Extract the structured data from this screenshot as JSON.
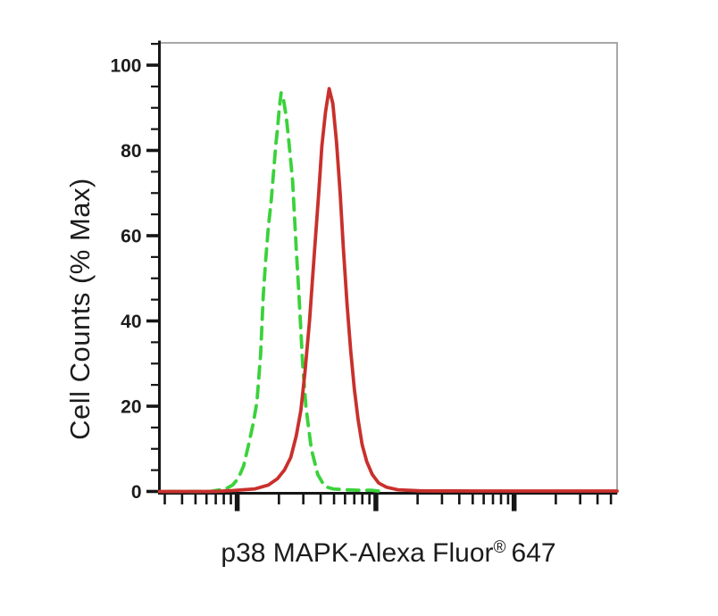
{
  "figure": {
    "xlabel_main": "p38 MAPK-Alexa Fluor",
    "xlabel_sup": "®",
    "xlabel_suffix": "647",
    "ylabel": "Cell Counts (% Max)"
  },
  "colors": {
    "green_series": "#3bd23b",
    "red_series": "#c9302c",
    "axis": "#161616",
    "frame": "#a8a8a8",
    "text": "#1c1c1c",
    "background": "#ffffff"
  },
  "chart_data": {
    "type": "line",
    "title": "",
    "xlabel": "p38 MAPK-Alexa Fluor®647",
    "ylabel": "Cell Counts (% Max)",
    "grid": false,
    "legend": "none",
    "x_axis": {
      "scale": "log",
      "numeric_labels": false,
      "decade_fractions": [
        0.17,
        0.473,
        0.775
      ],
      "decade_width_fraction": 0.3027
    },
    "y_axis": {
      "label": "Cell Counts (% Max)",
      "range": [
        0,
        105
      ],
      "major_ticks": [
        0,
        20,
        40,
        60,
        80,
        100
      ],
      "minor_step": 5
    },
    "series": [
      {
        "name": "green-dashed-histogram",
        "style": "dashed",
        "color_key": "green_series",
        "peak_percent_max": 93.5,
        "peak_x_fraction": 0.266,
        "points": [
          [
            0.02,
            0
          ],
          [
            0.111,
            0
          ],
          [
            0.145,
            0.6
          ],
          [
            0.16,
            1.5
          ],
          [
            0.172,
            3
          ],
          [
            0.184,
            6
          ],
          [
            0.195,
            11
          ],
          [
            0.205,
            16
          ],
          [
            0.213,
            21
          ],
          [
            0.221,
            32
          ],
          [
            0.227,
            46
          ],
          [
            0.232,
            54
          ],
          [
            0.238,
            62
          ],
          [
            0.244,
            68
          ],
          [
            0.248,
            73
          ],
          [
            0.254,
            81
          ],
          [
            0.258,
            85
          ],
          [
            0.262,
            90
          ],
          [
            0.266,
            93.5
          ],
          [
            0.271,
            92
          ],
          [
            0.277,
            88
          ],
          [
            0.283,
            82
          ],
          [
            0.291,
            73
          ],
          [
            0.299,
            57
          ],
          [
            0.305,
            46
          ],
          [
            0.313,
            30
          ],
          [
            0.32,
            20
          ],
          [
            0.332,
            10
          ],
          [
            0.346,
            4
          ],
          [
            0.361,
            1.2
          ],
          [
            0.379,
            0.6
          ],
          [
            0.404,
            0.4
          ],
          [
            0.434,
            0.3
          ],
          [
            0.463,
            0.3
          ],
          [
            0.488,
            0
          ]
        ]
      },
      {
        "name": "red-solid-histogram",
        "style": "solid",
        "color_key": "red_series",
        "peak_percent_max": 94.5,
        "peak_x_fraction": 0.371,
        "points": [
          [
            0.0,
            0
          ],
          [
            0.12,
            0
          ],
          [
            0.16,
            0.2
          ],
          [
            0.209,
            0.6
          ],
          [
            0.238,
            1.5
          ],
          [
            0.258,
            3
          ],
          [
            0.273,
            5
          ],
          [
            0.287,
            8
          ],
          [
            0.299,
            13
          ],
          [
            0.309,
            19
          ],
          [
            0.318,
            28
          ],
          [
            0.328,
            40
          ],
          [
            0.338,
            55
          ],
          [
            0.348,
            70
          ],
          [
            0.355,
            81
          ],
          [
            0.363,
            89
          ],
          [
            0.371,
            94.5
          ],
          [
            0.379,
            91
          ],
          [
            0.387,
            82
          ],
          [
            0.395,
            70
          ],
          [
            0.402,
            57
          ],
          [
            0.41,
            44
          ],
          [
            0.418,
            33
          ],
          [
            0.426,
            24
          ],
          [
            0.434,
            17
          ],
          [
            0.443,
            11
          ],
          [
            0.453,
            7
          ],
          [
            0.465,
            4
          ],
          [
            0.479,
            2
          ],
          [
            0.496,
            1
          ],
          [
            0.521,
            0.4
          ],
          [
            0.57,
            0.15
          ],
          [
            0.7,
            0.1
          ],
          [
            1.0,
            0.1
          ]
        ]
      }
    ]
  }
}
